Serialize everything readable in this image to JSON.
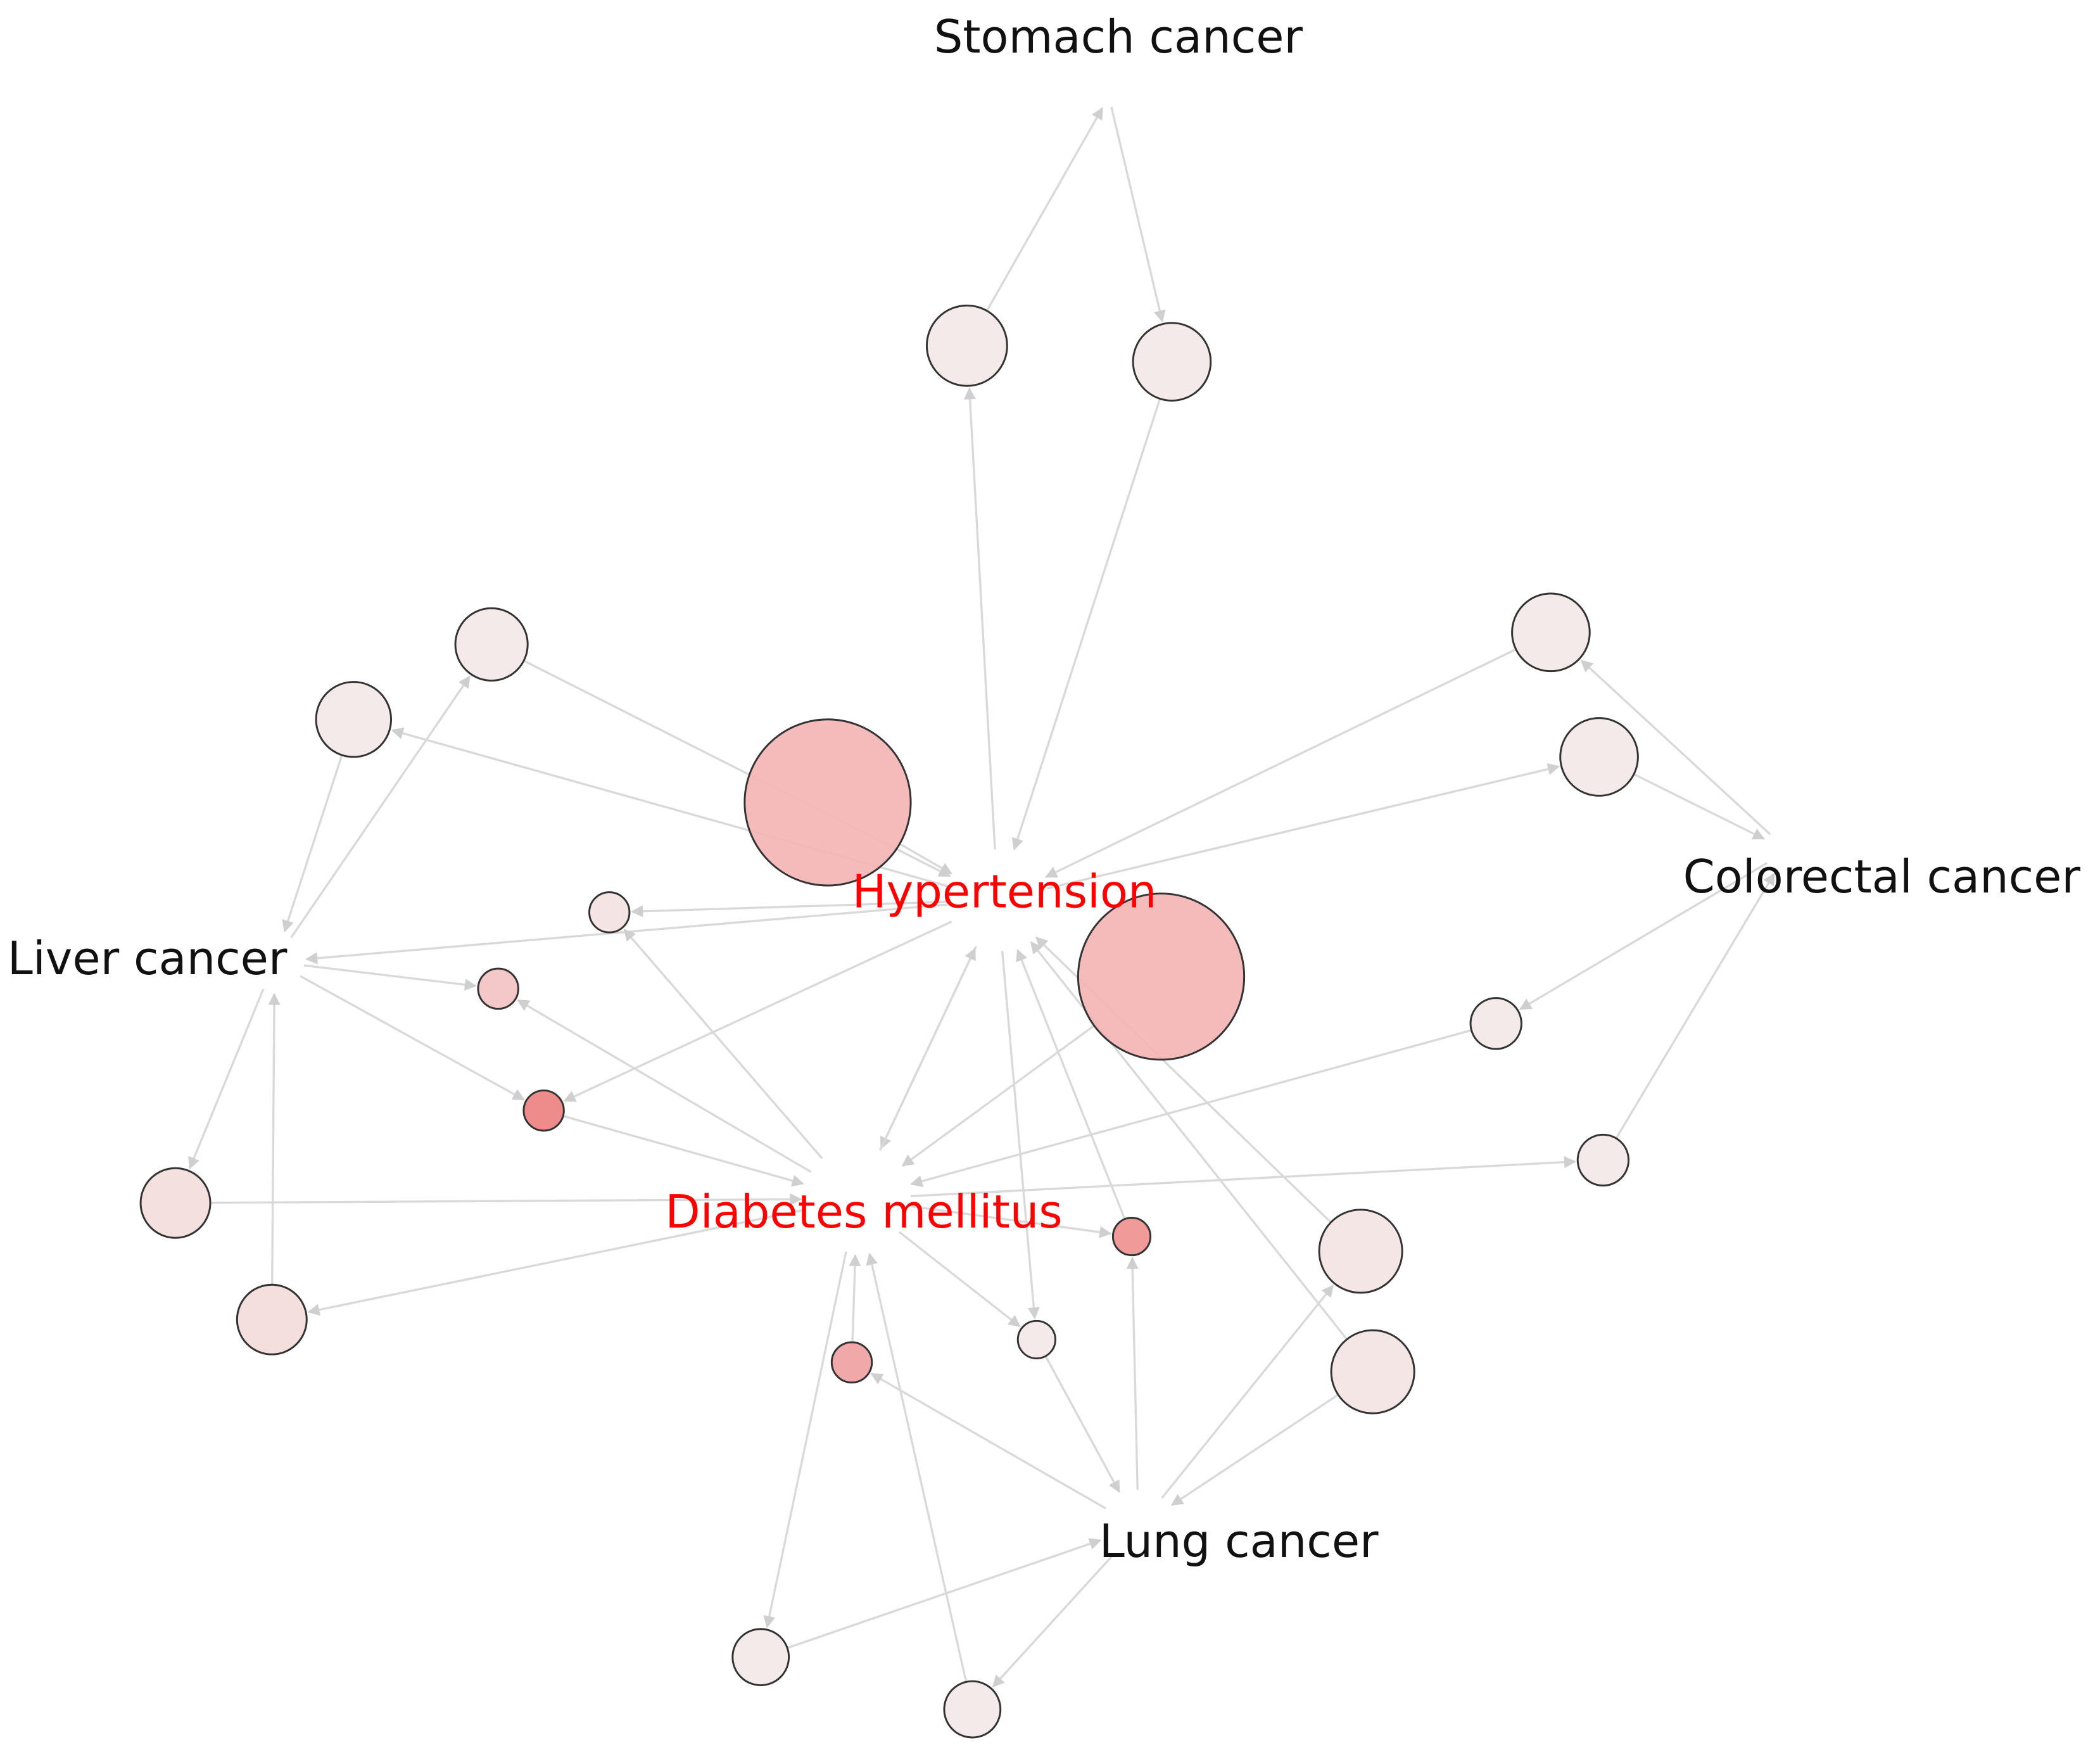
{
  "nodes": [
    {
      "label": "Stomach cancer"
    },
    {
      "label": "Colorectal cancer"
    },
    {
      "label": "Liver cancer"
    },
    {
      "label": "Hypertension"
    },
    {
      "label": "Diabetes mellitus"
    },
    {
      "label": "Lung cancer"
    }
  ]
}
